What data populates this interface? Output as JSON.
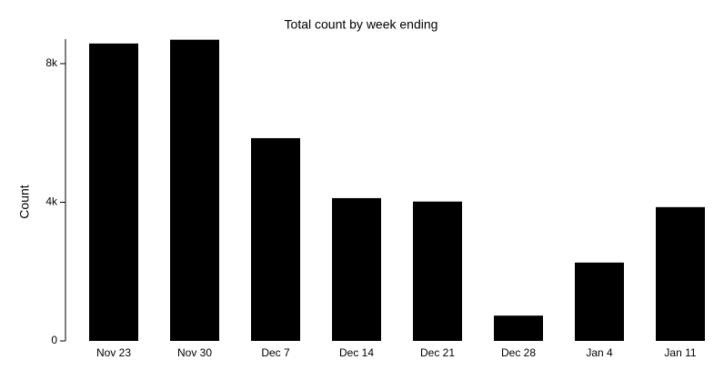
{
  "chart_data": {
    "type": "bar",
    "title": "Total count by week ending",
    "y_label": "Count",
    "categories": [
      "Nov 23",
      "Nov 30",
      "Dec 7",
      "Dec 14",
      "Dec 21",
      "Dec 28",
      "Jan 4",
      "Jan 11"
    ],
    "values": [
      8580,
      8690,
      5850,
      4120,
      4020,
      730,
      2260,
      3860
    ],
    "color": "#000000",
    "ylim": [
      0,
      8700
    ],
    "yticks": [
      0,
      {
        "value": 4000,
        "label": "4k"
      },
      {
        "value": 8000,
        "label": "8k"
      }
    ],
    "grid": false
  }
}
